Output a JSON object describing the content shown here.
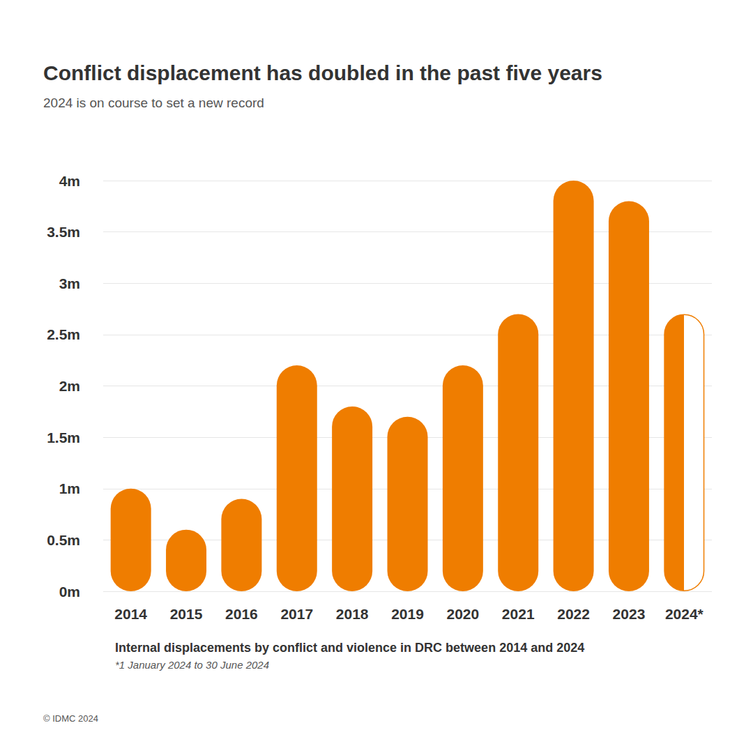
{
  "chart_data": {
    "type": "bar",
    "title": "Conflict displacement has doubled in the past five years",
    "subtitle": "2024 is on course to set a new record",
    "xlabel": "Internal displacements by conflict and violence in DRC between 2014 and 2024",
    "footnote": "*1 January 2024 to 30 June 2024",
    "source": "© IDMC 2024",
    "categories": [
      "2014",
      "2015",
      "2016",
      "2017",
      "2018",
      "2019",
      "2020",
      "2021",
      "2022",
      "2023",
      "2024*"
    ],
    "values": [
      1.0,
      0.6,
      0.9,
      2.2,
      1.8,
      1.7,
      2.2,
      2.7,
      4.0,
      3.8,
      2.7
    ],
    "color": "#ef7d00",
    "ylim": [
      0,
      4
    ],
    "yticks": [
      {
        "value": 0,
        "label": "0m"
      },
      {
        "value": 0.5,
        "label": "0.5m"
      },
      {
        "value": 1,
        "label": "1m"
      },
      {
        "value": 1.5,
        "label": "1.5m"
      },
      {
        "value": 2,
        "label": "2m"
      },
      {
        "value": 2.5,
        "label": "2.5m"
      },
      {
        "value": 3,
        "label": "3m"
      },
      {
        "value": 3.5,
        "label": "3.5m"
      },
      {
        "value": 4,
        "label": "4m"
      }
    ],
    "grid": true
  }
}
